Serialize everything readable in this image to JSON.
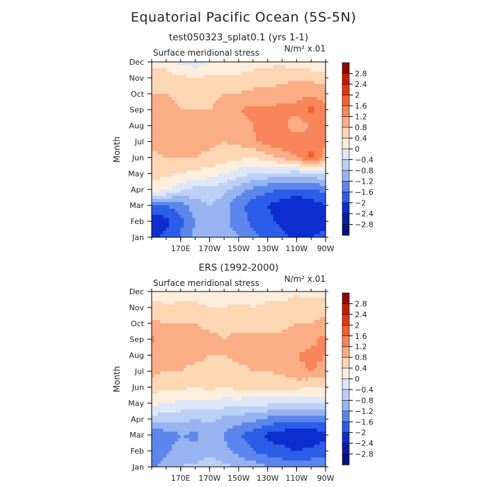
{
  "chart_data": {
    "type": "heatmap",
    "title": "Equatorial Pacific Ocean (5S-5N)",
    "colorbar_levels": [
      2.8,
      2.4,
      2,
      1.6,
      1.2,
      0.8,
      0.4,
      0,
      -0.4,
      -0.8,
      -1.2,
      -1.6,
      -2,
      -2.4,
      -2.8
    ],
    "colorbar_level_labels": [
      "2.8",
      "2.4",
      "2",
      "1.6",
      "1.2",
      "0.8",
      "0.4",
      "0",
      "−0.4",
      "−0.8",
      "−1.2",
      "−1.6",
      "−2",
      "−2.4",
      "−2.8"
    ],
    "colorbar_colors": [
      "#8b0a00",
      "#c41e05",
      "#e5360e",
      "#f4612a",
      "#f9855a",
      "#fbad85",
      "#fdd6b4",
      "#fdeede",
      "#dce8f9",
      "#bcd0f5",
      "#98b4f0",
      "#5c86ec",
      "#2b5de8",
      "#0c2ed0",
      "#0a1c9a",
      "#08107a"
    ],
    "panels": [
      {
        "title": "test050323_splat0.1 (yrs 1-1)",
        "variable_label": "Surface meridional stress",
        "units": "N/m² x.01",
        "ylabel": "Month",
        "y_categories": [
          "Jan",
          "Feb",
          "Mar",
          "Apr",
          "May",
          "Jun",
          "Jul",
          "Aug",
          "Sep",
          "Oct",
          "Nov",
          "Dec"
        ],
        "x_tick_labels": [
          "170E",
          "170W",
          "150W",
          "130W",
          "110W",
          "90W"
        ],
        "x_tick_lons": [
          170,
          190,
          210,
          230,
          250,
          270
        ],
        "x_range": [
          150,
          270
        ],
        "y_range": [
          1,
          12
        ],
        "grid_lons": [
          150,
          160,
          170,
          180,
          190,
          200,
          210,
          220,
          230,
          240,
          250,
          260,
          270
        ],
        "values": [
          [
            -2.1,
            -1.9,
            -1.6,
            -1.1,
            -0.9,
            -1.0,
            -1.2,
            -1.5,
            -1.7,
            -1.9,
            -2.1,
            -2.0,
            -1.9
          ],
          [
            -2.3,
            -2.1,
            -1.7,
            -1.2,
            -1.0,
            -1.1,
            -1.4,
            -1.7,
            -1.9,
            -2.1,
            -2.4,
            -2.3,
            -2.1
          ],
          [
            -1.7,
            -1.6,
            -1.4,
            -1.0,
            -0.8,
            -1.0,
            -1.5,
            -1.8,
            -2.0,
            -2.2,
            -2.4,
            -2.2,
            -2.0
          ],
          [
            0.3,
            0.1,
            -0.3,
            -0.5,
            -0.5,
            -0.7,
            -1.0,
            -1.3,
            -1.5,
            -1.6,
            -1.7,
            -1.6,
            -1.5
          ],
          [
            0.5,
            0.5,
            0.4,
            0.3,
            0.2,
            0.0,
            -0.2,
            -0.4,
            -0.5,
            -0.5,
            -0.6,
            -0.5,
            -0.4
          ],
          [
            0.7,
            0.8,
            0.8,
            0.8,
            0.7,
            0.6,
            0.5,
            0.4,
            0.6,
            0.9,
            1.2,
            1.8,
            1.1
          ],
          [
            0.9,
            1.0,
            0.9,
            0.9,
            0.9,
            0.8,
            0.9,
            1.1,
            1.4,
            1.5,
            1.4,
            1.4,
            1.2
          ],
          [
            0.8,
            0.9,
            0.9,
            0.8,
            0.9,
            0.9,
            1.0,
            1.2,
            1.6,
            1.3,
            1.0,
            1.2,
            1.2
          ],
          [
            0.9,
            0.9,
            0.8,
            0.8,
            0.8,
            0.9,
            1.2,
            1.3,
            1.3,
            1.3,
            1.3,
            1.7,
            1.3
          ],
          [
            0.8,
            0.8,
            0.7,
            0.6,
            0.7,
            0.8,
            0.8,
            0.9,
            0.9,
            1.0,
            1.1,
            1.1,
            1.0
          ],
          [
            0.5,
            0.6,
            0.5,
            0.4,
            0.5,
            0.5,
            0.5,
            0.6,
            0.6,
            0.7,
            0.7,
            0.7,
            0.6
          ],
          [
            0.3,
            0.2,
            -0.1,
            -0.2,
            0.0,
            0.1,
            0.1,
            0.2,
            0.3,
            0.3,
            0.2,
            0.1,
            0.1
          ]
        ]
      },
      {
        "title": "ERS (1992-2000)",
        "variable_label": "Surface meridional stress",
        "units": "N/m² x.01",
        "ylabel": "Month",
        "y_categories": [
          "Jan",
          "Feb",
          "Mar",
          "Apr",
          "May",
          "Jun",
          "Jul",
          "Aug",
          "Sep",
          "Oct",
          "Nov",
          "Dec"
        ],
        "x_tick_labels": [
          "170E",
          "170W",
          "150W",
          "130W",
          "110W",
          "90W"
        ],
        "x_tick_lons": [
          170,
          190,
          210,
          230,
          250,
          270
        ],
        "x_range": [
          150,
          270
        ],
        "y_range": [
          1,
          12
        ],
        "grid_lons": [
          150,
          160,
          170,
          180,
          190,
          200,
          210,
          220,
          230,
          240,
          250,
          260,
          270
        ],
        "values": [
          [
            -1.3,
            -1.0,
            -0.8,
            -0.7,
            -0.6,
            -0.7,
            -0.9,
            -1.0,
            -1.2,
            -1.3,
            -1.4,
            -1.3,
            -1.2
          ],
          [
            -1.5,
            -1.3,
            -1.0,
            -1.1,
            -0.9,
            -1.1,
            -1.3,
            -1.6,
            -1.8,
            -1.9,
            -2.0,
            -1.9,
            -1.8
          ],
          [
            -1.6,
            -1.4,
            -1.2,
            -1.3,
            -1.0,
            -1.2,
            -1.6,
            -1.8,
            -2.1,
            -2.2,
            -2.3,
            -2.3,
            -2.1
          ],
          [
            -0.6,
            -0.6,
            -0.7,
            -0.8,
            -0.7,
            -0.9,
            -1.0,
            -1.1,
            -1.3,
            -1.5,
            -1.5,
            -1.5,
            -1.4
          ],
          [
            0.1,
            0.0,
            -0.1,
            -0.1,
            -0.1,
            -0.2,
            -0.2,
            -0.3,
            -0.3,
            -0.3,
            -0.4,
            -0.4,
            -0.3
          ],
          [
            0.6,
            0.5,
            0.5,
            0.4,
            0.5,
            0.4,
            0.5,
            0.5,
            0.5,
            0.5,
            0.5,
            0.4,
            0.4
          ],
          [
            0.9,
            0.8,
            0.8,
            0.7,
            0.7,
            0.6,
            0.7,
            0.8,
            0.8,
            0.9,
            1.1,
            1.2,
            1.1
          ],
          [
            1.0,
            0.9,
            0.9,
            0.9,
            0.8,
            0.8,
            0.9,
            0.9,
            1.0,
            1.0,
            1.2,
            1.3,
            1.2
          ],
          [
            1.3,
            1.0,
            0.9,
            0.9,
            0.9,
            0.8,
            0.9,
            0.9,
            0.9,
            0.9,
            1.0,
            1.1,
            1.3
          ],
          [
            0.9,
            0.8,
            0.8,
            0.8,
            0.7,
            0.7,
            0.7,
            0.7,
            0.7,
            0.7,
            0.8,
            0.8,
            0.9
          ],
          [
            0.6,
            0.5,
            0.5,
            0.5,
            0.4,
            0.4,
            0.5,
            0.4,
            0.5,
            0.5,
            0.7,
            0.6,
            0.7
          ],
          [
            0.2,
            0.1,
            0.2,
            0.2,
            0.1,
            0.2,
            0.1,
            0.2,
            0.2,
            0.2,
            0.3,
            0.2,
            0.2
          ]
        ]
      }
    ]
  }
}
